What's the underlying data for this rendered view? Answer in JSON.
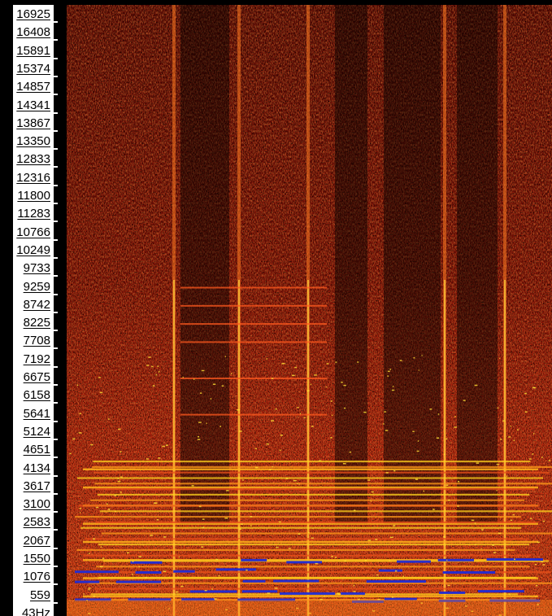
{
  "axis": {
    "tick_labels": [
      "16925",
      "16408",
      "15891",
      "15374",
      "14857",
      "14341",
      "13867",
      "13350",
      "12833",
      "12316",
      "11800",
      "11283",
      "10766",
      "10249",
      "9733",
      "9259",
      "8742",
      "8225",
      "7708",
      "7192",
      "6675",
      "6158",
      "5641",
      "5124",
      "4651",
      "4134",
      "3617",
      "3100",
      "2583",
      "2067",
      "1550",
      "1076",
      "559",
      "43Hz"
    ]
  },
  "colors": {
    "background": "#000000",
    "low": "#8a0f05",
    "mid": "#e0391a",
    "high": "#ffcf1e",
    "peak": "#1f2bd6",
    "axis_strip": "#ffffff"
  },
  "spectrogram": {
    "harmonic_lines_hz": [
      9259,
      8742,
      8225,
      7708,
      6675,
      5641,
      4134,
      3617,
      3100,
      2583,
      2067,
      1550,
      1076,
      559
    ]
  }
}
